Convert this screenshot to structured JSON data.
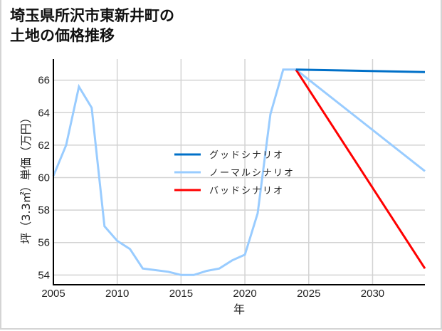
{
  "title": {
    "line1": "埼玉県所沢市東新井町の",
    "line2": "土地の価格推移"
  },
  "chart_data": {
    "type": "line",
    "title": "埼玉県所沢市東新井町の土地の価格推移",
    "xlabel": "年",
    "ylabel": "坪（3.3㎡）単価（万円）",
    "xlim": [
      2005,
      2034.1
    ],
    "ylim": [
      53.4,
      67.3
    ],
    "grid": true,
    "legend_position": "center",
    "x_ticks": [
      2005,
      2010,
      2015,
      2020,
      2025,
      2030
    ],
    "y_ticks": [
      54,
      56,
      58,
      60,
      62,
      64,
      66
    ],
    "series": [
      {
        "name": "グッドシナリオ",
        "color": "#0070c8",
        "x": [
          2024,
          2034.1
        ],
        "values": [
          66.65,
          66.5
        ]
      },
      {
        "name": "ノーマルシナリオ",
        "color": "#99ccff",
        "x": [
          2005,
          2006,
          2007,
          2008,
          2009,
          2010,
          2011,
          2012,
          2013,
          2014,
          2015,
          2016,
          2017,
          2018,
          2019,
          2020,
          2021,
          2022,
          2023,
          2024,
          2034.1
        ],
        "values": [
          60.1,
          62.0,
          65.6,
          64.3,
          57.0,
          56.1,
          55.6,
          54.4,
          54.3,
          54.2,
          54.0,
          54.0,
          54.25,
          54.4,
          54.9,
          55.25,
          57.8,
          63.9,
          66.65,
          66.65,
          60.4
        ]
      },
      {
        "name": "バッドシナリオ",
        "color": "#ff0000",
        "x": [
          2024,
          2034.1
        ],
        "values": [
          66.65,
          54.4
        ]
      }
    ]
  },
  "axes": {
    "xlabel": "年",
    "ylabel": "坪（3.3㎡）単価（万円）",
    "x_tick_labels": [
      "2005",
      "2010",
      "2015",
      "2020",
      "2025",
      "2030"
    ],
    "y_tick_labels": [
      "54",
      "56",
      "58",
      "60",
      "62",
      "64",
      "66"
    ]
  },
  "legend": [
    {
      "label": "グッドシナリオ",
      "color": "#0070c8"
    },
    {
      "label": "ノーマルシナリオ",
      "color": "#99ccff"
    },
    {
      "label": "バッドシナリオ",
      "color": "#ff0000"
    }
  ]
}
